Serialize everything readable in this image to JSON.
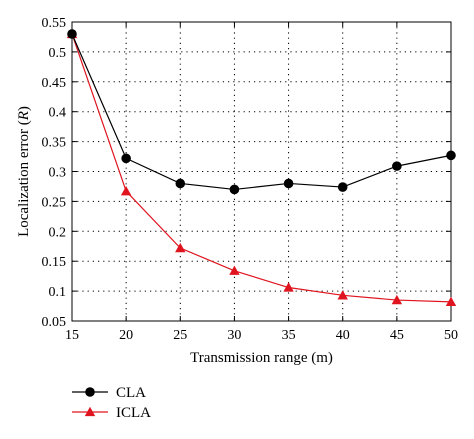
{
  "chart_data": {
    "type": "line",
    "title": "",
    "xlabel": "Transmission range (m)",
    "ylabel_main": "Localization error (",
    "ylabel_var": "R",
    "ylabel_end": ")",
    "xlim": [
      15,
      50
    ],
    "ylim": [
      0.05,
      0.55
    ],
    "x": [
      15,
      20,
      25,
      30,
      35,
      40,
      45,
      50
    ],
    "x_tick_labels": [
      "15",
      "20",
      "25",
      "30",
      "35",
      "40",
      "45",
      "50"
    ],
    "y_ticks": [
      0.05,
      0.1,
      0.15,
      0.2,
      0.25,
      0.3,
      0.35,
      0.4,
      0.45,
      0.5,
      0.55
    ],
    "y_tick_labels": [
      "0.05",
      "0.1",
      "0.15",
      "0.2",
      "0.25",
      "0.3",
      "0.35",
      "0.4",
      "0.45",
      "0.5",
      "0.55"
    ],
    "grid": "dotted",
    "legend_position": "below-left",
    "series": [
      {
        "name": "CLA",
        "color": "#000000",
        "marker": "circle",
        "values": [
          0.53,
          0.322,
          0.28,
          0.27,
          0.28,
          0.274,
          0.309,
          0.327
        ]
      },
      {
        "name": "ICLA",
        "color": "#e0141e",
        "marker": "triangle",
        "values": [
          0.53,
          0.267,
          0.172,
          0.134,
          0.106,
          0.093,
          0.085,
          0.082
        ]
      }
    ]
  }
}
